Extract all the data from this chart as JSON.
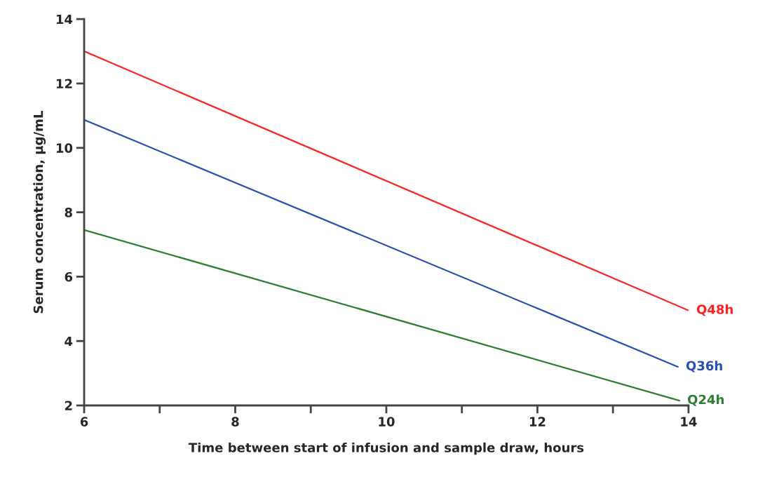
{
  "chart_data": {
    "type": "line",
    "xlabel": "Time between start of infusion and sample draw, hours",
    "ylabel": "Serum concentration, µg/mL",
    "xlim": [
      6,
      14
    ],
    "ylim": [
      2,
      14
    ],
    "xticks": [
      6,
      {
        "value": 7,
        "label": null
      },
      8,
      {
        "value": 9,
        "label": null
      },
      10,
      {
        "value": 11,
        "label": null
      },
      12,
      {
        "value": 13,
        "label": null
      },
      14
    ],
    "yticks": [
      2,
      4,
      6,
      8,
      10,
      12,
      14
    ],
    "grid": false,
    "legend": false,
    "marker": "none",
    "line_style": "solid",
    "series": [
      {
        "name": "Q48h",
        "color": "#ff2020",
        "x": [
          6,
          14
        ],
        "values": [
          13,
          4.95
        ]
      },
      {
        "name": "Q36h",
        "color": "#2a4fb0",
        "x": [
          6,
          13.86
        ],
        "values": [
          10.87,
          3.2
        ]
      },
      {
        "name": "Q24h",
        "color": "#2e7d32",
        "x": [
          6,
          13.88
        ],
        "values": [
          7.45,
          2.15
        ]
      }
    ]
  }
}
